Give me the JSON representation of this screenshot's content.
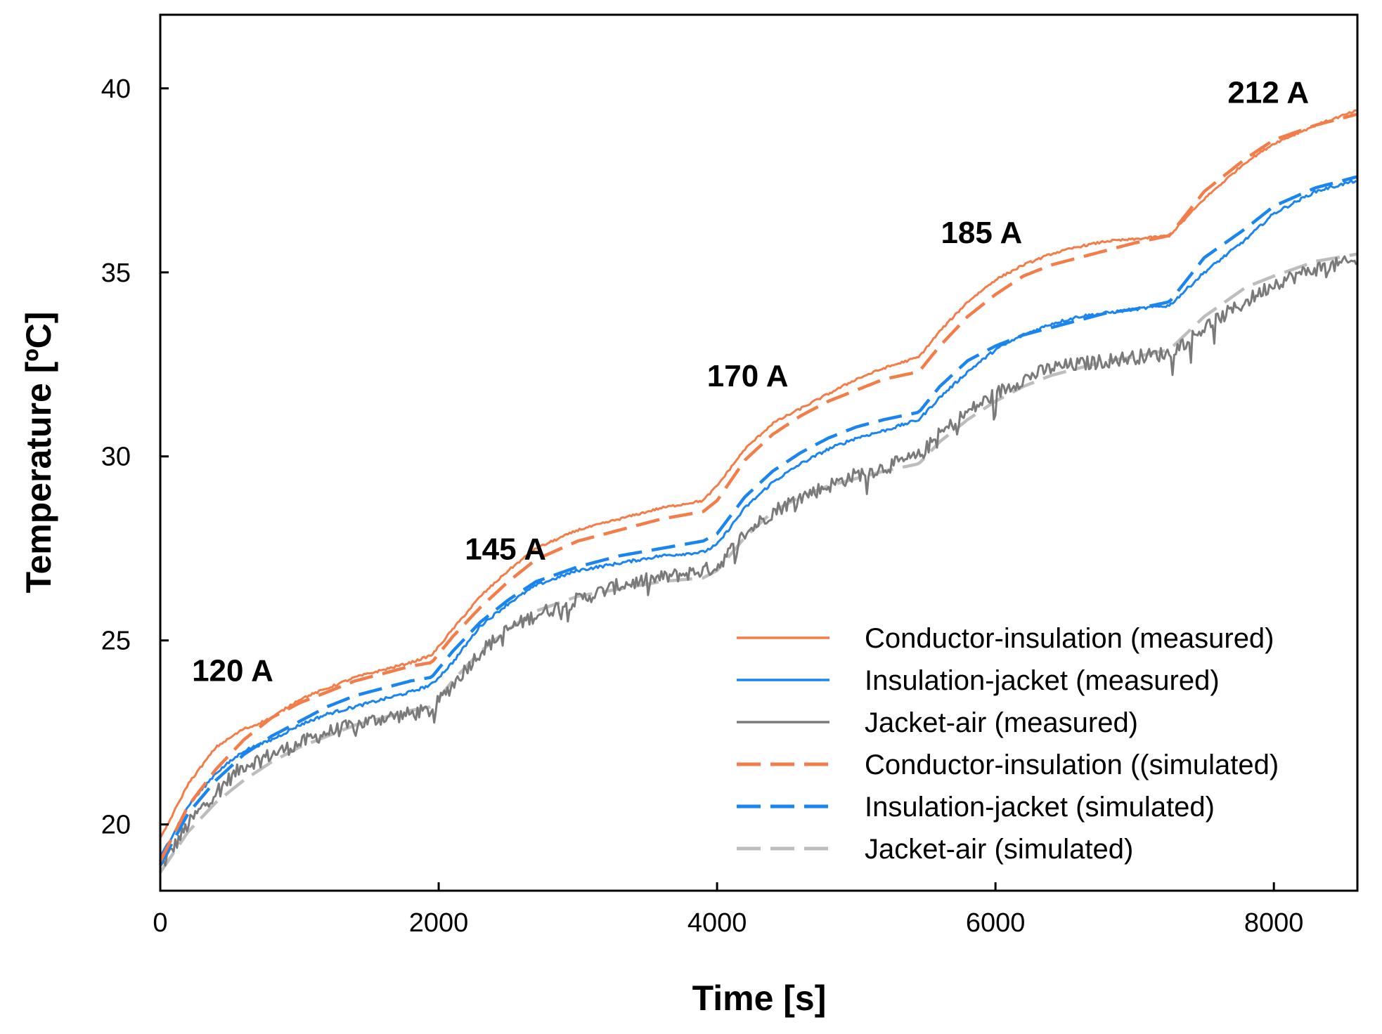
{
  "chart_data": {
    "type": "line",
    "title": "",
    "xlabel": "Time [s]",
    "ylabel": "Temperature [ºC]",
    "xlim": [
      0,
      8600
    ],
    "ylim": [
      18.2,
      42
    ],
    "xticks": [
      0,
      2000,
      4000,
      6000,
      8000
    ],
    "yticks": [
      20,
      25,
      30,
      35,
      40
    ],
    "grid": false,
    "legend_position": "bottom-right",
    "annotations": [
      {
        "text": "120 A",
        "x": 520,
        "y": 23.9
      },
      {
        "text": "145 A",
        "x": 2480,
        "y": 27.2
      },
      {
        "text": "170 A",
        "x": 4220,
        "y": 31.9
      },
      {
        "text": "185 A",
        "x": 5900,
        "y": 35.8
      },
      {
        "text": "212 A",
        "x": 7960,
        "y": 39.6
      }
    ],
    "series": [
      {
        "name": "Conductor-insulation (measured)",
        "color": "#F47C48",
        "dash": "solid",
        "noise": 0.03,
        "x": [
          0,
          200,
          400,
          600,
          650,
          800,
          1000,
          1200,
          1400,
          1600,
          1800,
          1950,
          2100,
          2300,
          2500,
          2700,
          3000,
          3300,
          3600,
          3900,
          4000,
          4200,
          4400,
          4600,
          4800,
          5000,
          5200,
          5450,
          5600,
          5800,
          6000,
          6200,
          6400,
          6600,
          6800,
          7000,
          7250,
          7500,
          7800,
          8000,
          8300,
          8600
        ],
        "y": [
          19.6,
          21.1,
          22.1,
          22.6,
          22.65,
          22.9,
          23.4,
          23.7,
          24.0,
          24.2,
          24.4,
          24.6,
          25.3,
          26.2,
          26.9,
          27.5,
          28.0,
          28.3,
          28.6,
          28.8,
          29.2,
          30.2,
          30.9,
          31.3,
          31.7,
          32.1,
          32.4,
          32.7,
          33.4,
          34.2,
          34.8,
          35.2,
          35.5,
          35.7,
          35.85,
          35.9,
          36.0,
          37.0,
          38.0,
          38.5,
          39.0,
          39.4
        ]
      },
      {
        "name": "Insulation-jacket (measured)",
        "color": "#1A84F0",
        "dash": "solid",
        "noise": 0.04,
        "x": [
          0,
          200,
          400,
          600,
          800,
          1000,
          1200,
          1400,
          1600,
          1800,
          1950,
          2100,
          2300,
          2500,
          2700,
          3000,
          3300,
          3600,
          3900,
          4000,
          4200,
          4400,
          4600,
          4800,
          5000,
          5200,
          5450,
          5600,
          5800,
          6000,
          6200,
          6400,
          6600,
          6800,
          7000,
          7250,
          7500,
          7800,
          8000,
          8300,
          8600
        ],
        "y": [
          19.1,
          20.5,
          21.4,
          22.0,
          22.3,
          22.7,
          23.0,
          23.2,
          23.4,
          23.6,
          23.8,
          24.4,
          25.4,
          26.0,
          26.5,
          26.9,
          27.1,
          27.3,
          27.4,
          27.6,
          28.6,
          29.3,
          29.8,
          30.2,
          30.5,
          30.7,
          31.0,
          31.6,
          32.3,
          32.9,
          33.3,
          33.6,
          33.8,
          33.9,
          34.0,
          34.1,
          35.0,
          35.9,
          36.6,
          37.2,
          37.5
        ]
      },
      {
        "name": "Jacket-air (measured)",
        "color": "#7A7A7A",
        "dash": "solid",
        "noise": 0.2,
        "x": [
          0,
          200,
          400,
          600,
          800,
          1000,
          1200,
          1400,
          1600,
          1800,
          1950,
          2100,
          2300,
          2500,
          2700,
          3000,
          3300,
          3600,
          3900,
          4000,
          4200,
          4400,
          4600,
          4800,
          5000,
          5200,
          5450,
          5600,
          5800,
          6000,
          6200,
          6400,
          6600,
          6800,
          7000,
          7250,
          7500,
          7800,
          8000,
          8300,
          8600
        ],
        "y": [
          18.8,
          20.0,
          20.9,
          21.6,
          21.9,
          22.2,
          22.5,
          22.7,
          22.9,
          23.0,
          23.1,
          23.8,
          24.7,
          25.3,
          25.7,
          26.1,
          26.5,
          26.7,
          26.9,
          27.0,
          27.9,
          28.5,
          28.9,
          29.2,
          29.5,
          29.7,
          30.0,
          30.6,
          31.2,
          31.7,
          32.1,
          32.4,
          32.5,
          32.6,
          32.7,
          32.8,
          33.5,
          34.2,
          34.7,
          35.1,
          35.3
        ]
      },
      {
        "name": "Conductor-insulation ((simulated)",
        "color": "#F47C48",
        "dash": "dashed",
        "noise": 0,
        "x": [
          0,
          200,
          400,
          600,
          800,
          1000,
          1200,
          1400,
          1600,
          1800,
          1950,
          2100,
          2300,
          2500,
          2700,
          3000,
          3300,
          3600,
          3900,
          4000,
          4200,
          4400,
          4600,
          4800,
          5000,
          5200,
          5450,
          5600,
          5800,
          6000,
          6200,
          6400,
          6600,
          6800,
          7000,
          7250,
          7500,
          7800,
          8000,
          8300,
          8600
        ],
        "y": [
          19.0,
          20.5,
          21.5,
          22.3,
          22.9,
          23.3,
          23.6,
          23.9,
          24.1,
          24.3,
          24.4,
          25.1,
          25.9,
          26.6,
          27.2,
          27.7,
          28.0,
          28.3,
          28.5,
          28.8,
          29.9,
          30.6,
          31.1,
          31.5,
          31.8,
          32.1,
          32.3,
          33.0,
          33.8,
          34.4,
          34.9,
          35.2,
          35.4,
          35.6,
          35.8,
          36.0,
          37.2,
          38.1,
          38.6,
          39.0,
          39.3
        ]
      },
      {
        "name": "Insulation-jacket (simulated)",
        "color": "#1A84F0",
        "dash": "dashed",
        "noise": 0,
        "x": [
          0,
          200,
          400,
          600,
          800,
          1000,
          1200,
          1400,
          1600,
          1800,
          1950,
          2100,
          2300,
          2500,
          2700,
          3000,
          3300,
          3600,
          3900,
          4000,
          4200,
          4400,
          4600,
          4800,
          5000,
          5200,
          5450,
          5600,
          5800,
          6000,
          6200,
          6400,
          6600,
          6800,
          7000,
          7250,
          7500,
          7800,
          8000,
          8300,
          8600
        ],
        "y": [
          18.9,
          20.3,
          21.2,
          21.9,
          22.4,
          22.8,
          23.2,
          23.5,
          23.7,
          23.9,
          24.0,
          24.7,
          25.5,
          26.1,
          26.6,
          27.0,
          27.3,
          27.5,
          27.7,
          27.9,
          28.9,
          29.6,
          30.1,
          30.5,
          30.8,
          31.0,
          31.2,
          31.9,
          32.6,
          33.0,
          33.3,
          33.5,
          33.7,
          33.9,
          34.0,
          34.2,
          35.4,
          36.2,
          36.8,
          37.3,
          37.6
        ]
      },
      {
        "name": "Jacket-air (simulated)",
        "color": "#BDBDBD",
        "dash": "dashed",
        "noise": 0,
        "x": [
          0,
          200,
          400,
          600,
          800,
          1000,
          1200,
          1400,
          1600,
          1800,
          1950,
          2100,
          2300,
          2500,
          2700,
          3000,
          3300,
          3600,
          3900,
          4000,
          4200,
          4400,
          4600,
          4800,
          5000,
          5200,
          5450,
          5600,
          5800,
          6000,
          6200,
          6400,
          6600,
          6800,
          7000,
          7250,
          7500,
          7800,
          8000,
          8300,
          8600
        ],
        "y": [
          18.7,
          19.8,
          20.6,
          21.2,
          21.7,
          22.1,
          22.4,
          22.7,
          22.9,
          23.1,
          23.2,
          23.9,
          24.7,
          25.3,
          25.8,
          26.2,
          26.4,
          26.6,
          26.7,
          26.9,
          27.8,
          28.5,
          28.9,
          29.2,
          29.4,
          29.6,
          29.8,
          30.4,
          31.0,
          31.5,
          31.9,
          32.2,
          32.4,
          32.6,
          32.7,
          32.9,
          33.8,
          34.6,
          34.9,
          35.3,
          35.5
        ]
      }
    ]
  }
}
